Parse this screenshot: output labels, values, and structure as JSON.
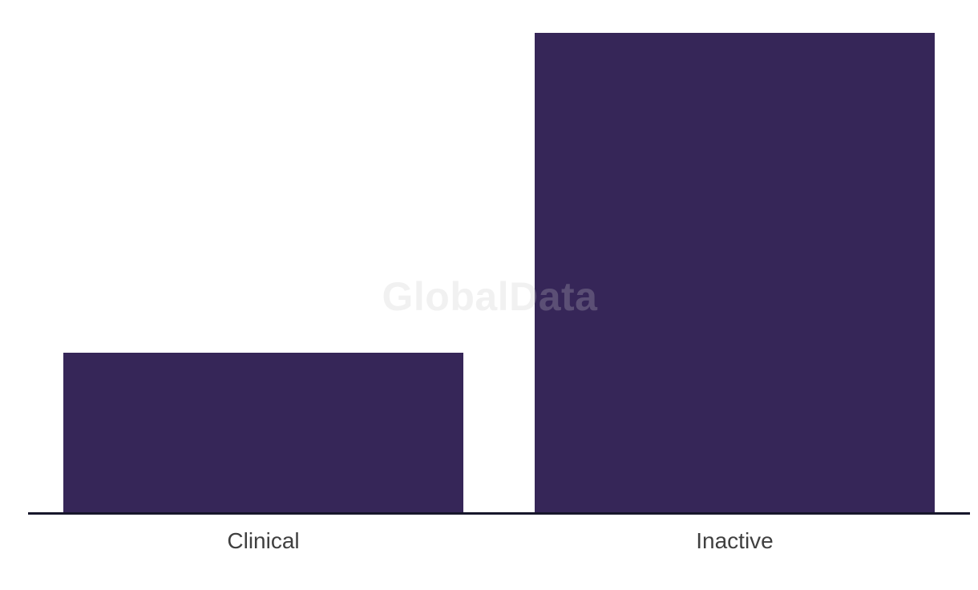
{
  "chart_data": {
    "type": "bar",
    "title": "",
    "xlabel": "",
    "ylabel": "",
    "categories": [
      "Clinical",
      "Inactive"
    ],
    "values": [
      1,
      3
    ],
    "ylim": [
      0,
      3
    ],
    "grid": false,
    "legend": false,
    "y_axis_visible": false,
    "bar_color": "#362658",
    "axis_line_color": "#17172B",
    "label_color": "#3F3F3F"
  },
  "watermark": {
    "text": "GlobalData",
    "color": "#CBCBCB",
    "opacity": 0.25
  }
}
